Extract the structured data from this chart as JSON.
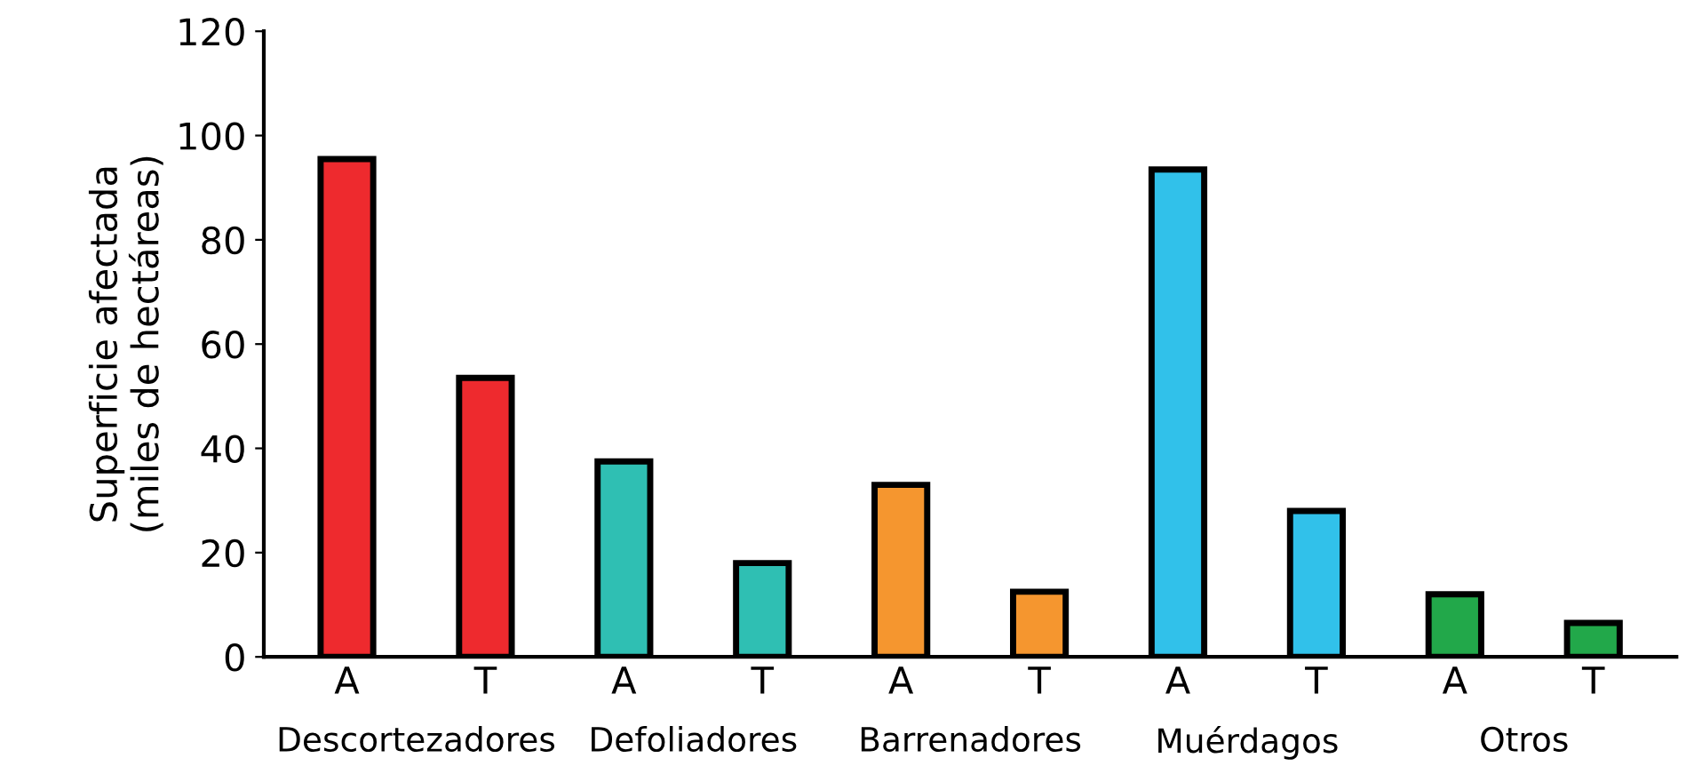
{
  "chart_data": {
    "type": "bar",
    "ylabel": "Superficie afectada\n(miles de hectáreas)",
    "categories": [
      "A",
      "T",
      "A",
      "T",
      "A",
      "T",
      "A",
      "T",
      "A",
      "T"
    ],
    "values": [
      95.5,
      53.5,
      37.5,
      18,
      33,
      12.5,
      93.5,
      28,
      12,
      6.5
    ],
    "colors": [
      "#ee2a2e",
      "#ee2a2e",
      "#2fbfb3",
      "#2fbfb3",
      "#f5962f",
      "#f5962f",
      "#31c1ea",
      "#31c1ea",
      "#22a84a",
      "#22a84a"
    ],
    "ylim": [
      0,
      120
    ],
    "yticks": [
      0,
      20,
      40,
      60,
      80,
      100,
      120
    ],
    "grid": false,
    "annotations": [
      "Descortezadores",
      "Defoliadores",
      "Barrenadores",
      "Muérdagos",
      "Otros"
    ]
  }
}
